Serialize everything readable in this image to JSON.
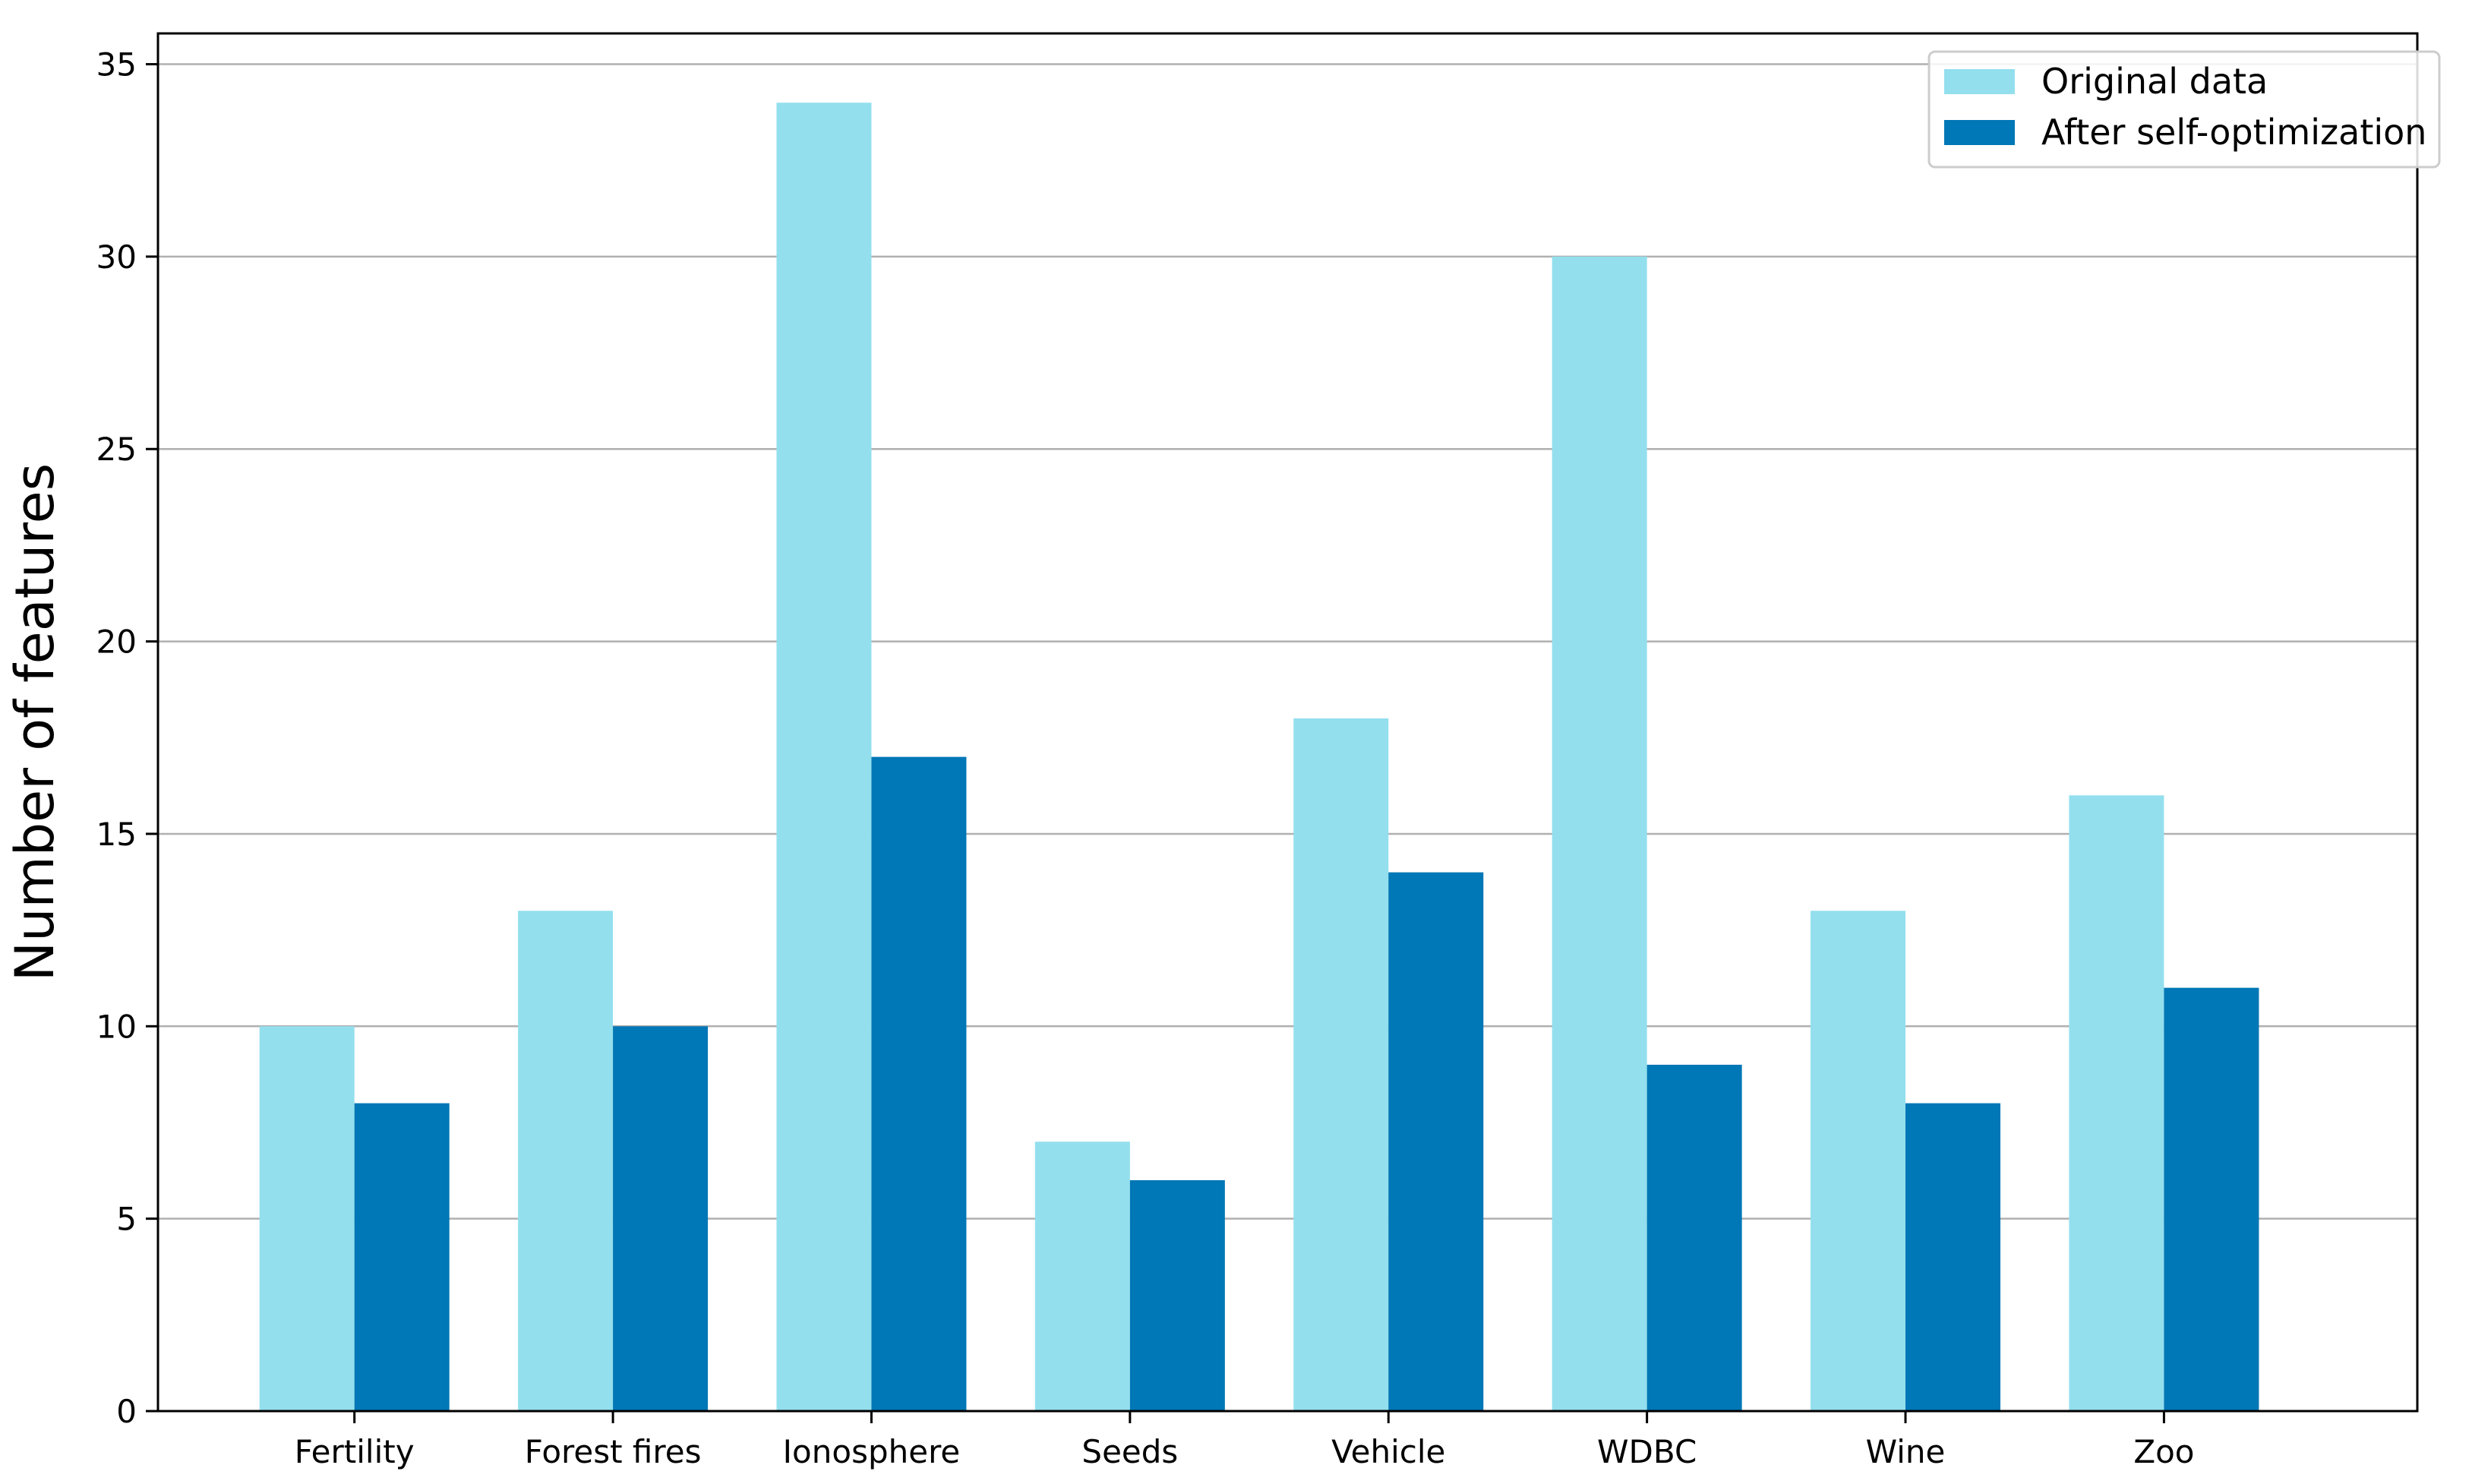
{
  "chart_data": {
    "type": "bar",
    "title": "",
    "xlabel": "",
    "ylabel": "Number of features",
    "categories": [
      "Fertility",
      "Forest fires",
      "Ionosphere",
      "Seeds",
      "Vehicle",
      "WDBC",
      "Wine",
      "Zoo"
    ],
    "series": [
      {
        "name": "Original data",
        "color": "#93dfee",
        "values": [
          10,
          13,
          34,
          7,
          18,
          30,
          13,
          16
        ]
      },
      {
        "name": "After self-optimization",
        "color": "#0077b6",
        "values": [
          8,
          10,
          17,
          6,
          14,
          9,
          8,
          11
        ]
      }
    ],
    "ylim": [
      0,
      35.8
    ],
    "yticks": [
      "0",
      "5",
      "10",
      "15",
      "20",
      "25",
      "30",
      "35"
    ],
    "grid": "horizontal",
    "legend_position": "top-right",
    "colors": {
      "grid": "#b0b0b0",
      "axis": "#000000"
    }
  }
}
